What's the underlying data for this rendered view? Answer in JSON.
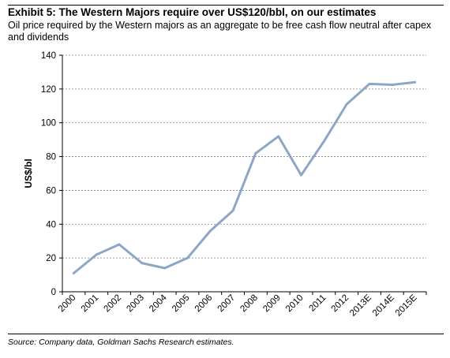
{
  "header": {
    "title": "Exhibit 5: The Western Majors require over US$120/bbl, on our estimates",
    "subtitle": "Oil price required by the Western majors as an aggregate to be free cash flow neutral after capex and dividends"
  },
  "footer": {
    "source": "Source: Company data, Goldman Sachs Research estimates."
  },
  "chart_data": {
    "type": "line",
    "title": "Exhibit 5: The Western Majors require over US$120/bbl, on our estimates",
    "subtitle": "Oil price required by the Western majors as an aggregate to be free cash flow neutral after capex and dividends",
    "xlabel": "",
    "ylabel": "US$/bl",
    "categories": [
      "2000",
      "2001",
      "2002",
      "2003",
      "2004",
      "2005",
      "2006",
      "2007",
      "2008",
      "2009",
      "2010",
      "2011",
      "2012",
      "2013E",
      "2014E",
      "2015E"
    ],
    "series": [
      {
        "values": [
          11,
          22,
          28,
          17,
          14,
          20,
          36,
          48,
          82,
          92,
          69,
          89,
          111,
          123,
          122.5,
          124
        ]
      }
    ],
    "ylim": [
      0,
      140
    ],
    "yticks": [
      0,
      20,
      40,
      60,
      80,
      100,
      120,
      140
    ],
    "grid": "horizontal dashed",
    "legend": "none",
    "colors": {
      "line": "#8ea6c6",
      "grid": "#808080",
      "axis": "#000000"
    }
  }
}
